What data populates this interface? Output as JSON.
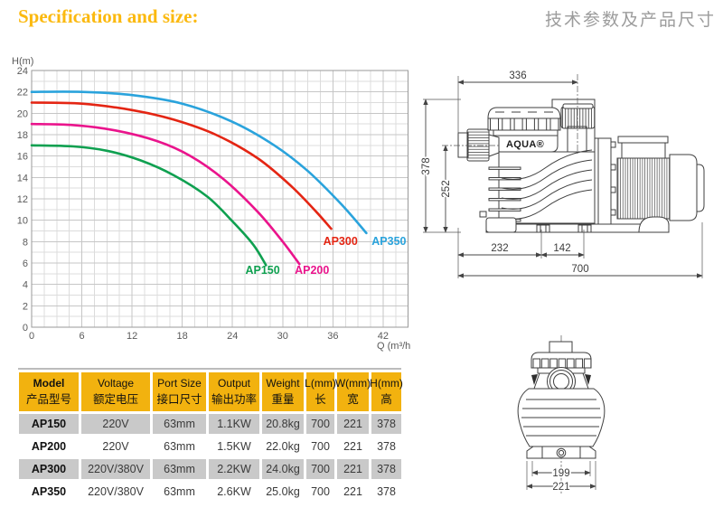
{
  "page": {
    "title": "Specification and size:",
    "title_zh": "技术参数及产品尺寸"
  },
  "chart_data": {
    "type": "line",
    "title": "",
    "xlabel": "Q (m³/h",
    "ylabel": "H(m)",
    "xlim": [
      0,
      45
    ],
    "ylim": [
      0,
      24
    ],
    "x_ticks": [
      0,
      6,
      12,
      18,
      24,
      30,
      36,
      42
    ],
    "y_ticks": [
      0,
      2,
      4,
      6,
      8,
      10,
      12,
      14,
      16,
      18,
      20,
      22,
      24
    ],
    "x_minor_step": 1.5,
    "y_minor_step": 1,
    "grid": true,
    "legend_position": "curve-end-labels",
    "series": [
      {
        "name": "AP150",
        "color": "#0FA050",
        "points": [
          [
            0,
            17
          ],
          [
            5,
            16.9
          ],
          [
            9,
            16.5
          ],
          [
            13,
            15.6
          ],
          [
            17,
            14.2
          ],
          [
            21,
            12.2
          ],
          [
            24,
            9.9
          ],
          [
            26.5,
            7.7
          ],
          [
            28,
            5.8
          ]
        ],
        "label_at": [
          27.6,
          5.0
        ]
      },
      {
        "name": "AP200",
        "color": "#EA148C",
        "points": [
          [
            0,
            19
          ],
          [
            5,
            18.9
          ],
          [
            10,
            18.4
          ],
          [
            15,
            17.4
          ],
          [
            19,
            16.0
          ],
          [
            23,
            13.8
          ],
          [
            27,
            10.8
          ],
          [
            30,
            8.0
          ],
          [
            32,
            5.9
          ]
        ],
        "label_at": [
          33.5,
          5.0
        ]
      },
      {
        "name": "AP300",
        "color": "#E42513",
        "points": [
          [
            0,
            21
          ],
          [
            6,
            20.9
          ],
          [
            12,
            20.3
          ],
          [
            17,
            19.4
          ],
          [
            22,
            18.0
          ],
          [
            27,
            15.8
          ],
          [
            31,
            13.2
          ],
          [
            34,
            10.8
          ],
          [
            35.8,
            9.2
          ]
        ],
        "label_at": [
          36.9,
          7.7
        ]
      },
      {
        "name": "AP350",
        "color": "#2AA3DC",
        "points": [
          [
            0,
            22
          ],
          [
            6,
            22
          ],
          [
            12,
            21.7
          ],
          [
            18,
            20.9
          ],
          [
            24,
            19.2
          ],
          [
            29,
            17.0
          ],
          [
            33,
            14.6
          ],
          [
            37,
            11.5
          ],
          [
            40,
            8.8
          ]
        ],
        "label_at": [
          42.7,
          7.7
        ]
      }
    ]
  },
  "table": {
    "headers": [
      [
        "Model",
        "产品型号"
      ],
      [
        "Voltage",
        "额定电压"
      ],
      [
        "Port Size",
        "接口尺寸"
      ],
      [
        "Output",
        "输出功率"
      ],
      [
        "Weight",
        "重量"
      ],
      [
        "L(mm)",
        "长"
      ],
      [
        "W(mm)",
        "宽"
      ],
      [
        "H(mm)",
        "高"
      ]
    ],
    "rows": [
      [
        "AP150",
        "220V",
        "63mm",
        "1.1KW",
        "20.8kg",
        "700",
        "221",
        "378"
      ],
      [
        "AP200",
        "220V",
        "63mm",
        "1.5KW",
        "22.0kg",
        "700",
        "221",
        "378"
      ],
      [
        "AP300",
        "220V/380V",
        "63mm",
        "2.2KW",
        "24.0kg",
        "700",
        "221",
        "378"
      ],
      [
        "AP350",
        "220V/380V",
        "63mm",
        "2.6KW",
        "25.0kg",
        "700",
        "221",
        "378"
      ]
    ]
  },
  "drawing_side": {
    "brand": "AQUA®",
    "dims": {
      "d336": "336",
      "d378": "378",
      "d252": "252",
      "d232": "232",
      "d142": "142",
      "d700": "700"
    }
  },
  "drawing_front": {
    "dims": {
      "d199": "199",
      "d221": "221"
    }
  }
}
